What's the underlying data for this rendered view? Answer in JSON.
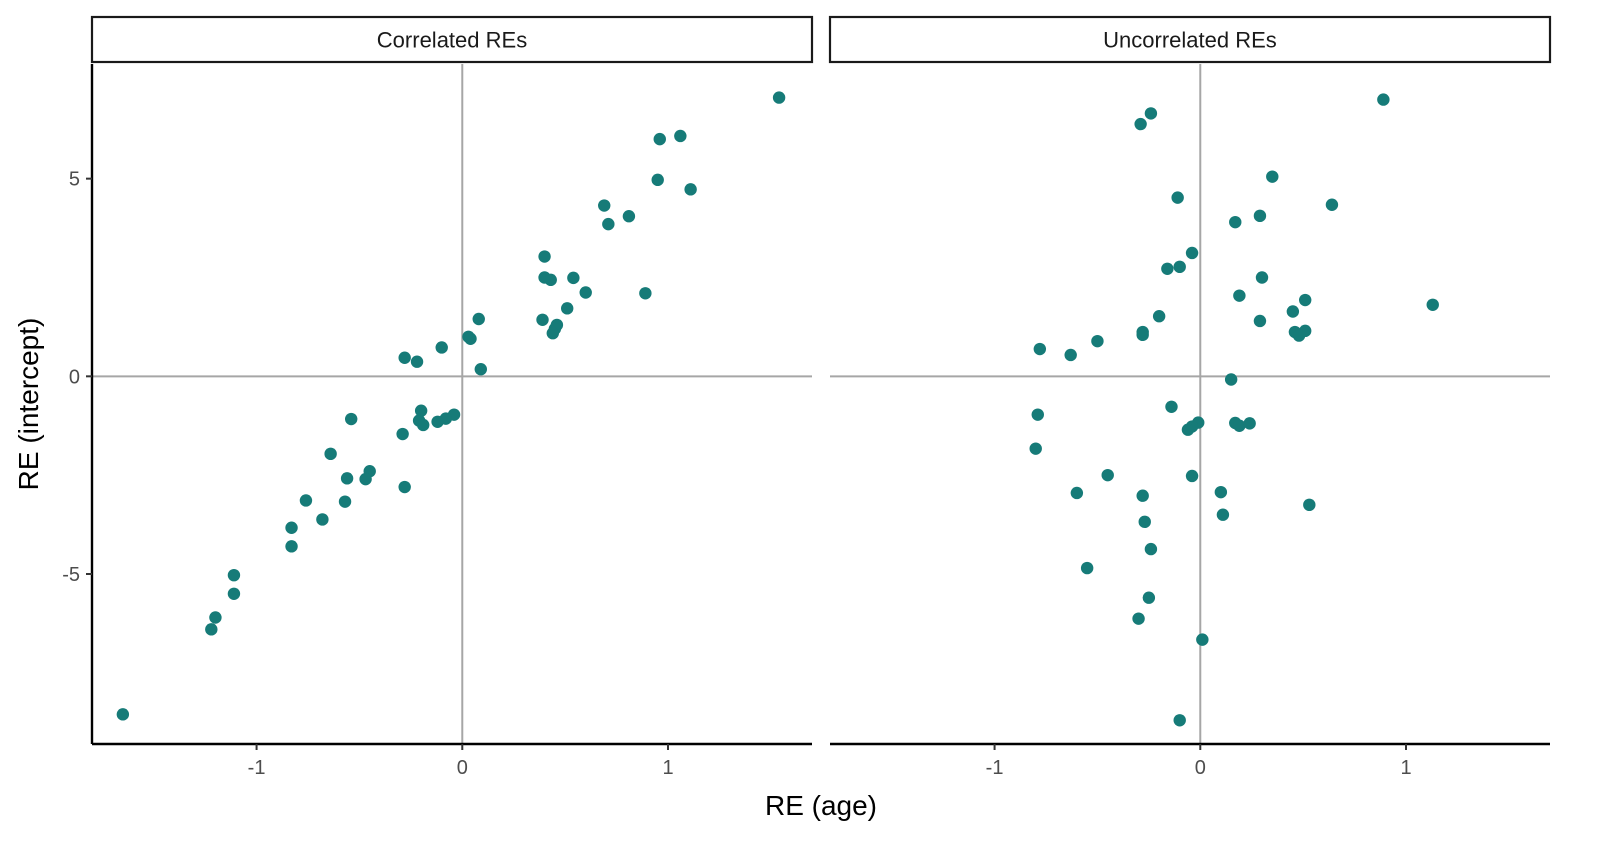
{
  "chart_data": {
    "type": "scatter",
    "xlabel": "RE (age)",
    "ylabel": "RE (intercept)",
    "xlim": [
      -1.8,
      1.7
    ],
    "ylim": [
      -9.3,
      7.9
    ],
    "x_ticks": [
      {
        "value": -1,
        "label": "-1"
      },
      {
        "value": 0,
        "label": "0"
      },
      {
        "value": 1,
        "label": "1"
      }
    ],
    "y_ticks": [
      {
        "value": 5,
        "label": "5"
      },
      {
        "value": 0,
        "label": "0"
      },
      {
        "value": -5,
        "label": "-5"
      }
    ],
    "reference_lines": {
      "x": 0,
      "y": 0,
      "color": "#a6a6a6"
    },
    "point_color": "#167b78",
    "grid": false,
    "legend": "none",
    "panels": [
      {
        "title": "Correlated REs",
        "points": [
          [
            1.54,
            7.05
          ],
          [
            1.06,
            6.08
          ],
          [
            0.96,
            6.0
          ],
          [
            0.95,
            4.97
          ],
          [
            1.11,
            4.73
          ],
          [
            0.69,
            4.32
          ],
          [
            0.81,
            4.05
          ],
          [
            0.71,
            3.85
          ],
          [
            0.4,
            3.03
          ],
          [
            0.4,
            2.5
          ],
          [
            0.43,
            2.44
          ],
          [
            0.54,
            2.49
          ],
          [
            0.6,
            2.12
          ],
          [
            0.89,
            2.1
          ],
          [
            0.51,
            1.72
          ],
          [
            0.39,
            1.43
          ],
          [
            0.46,
            1.3
          ],
          [
            0.45,
            1.2
          ],
          [
            0.44,
            1.09
          ],
          [
            0.08,
            1.45
          ],
          [
            0.03,
            1.0
          ],
          [
            0.04,
            0.95
          ],
          [
            0.09,
            0.18
          ],
          [
            -0.1,
            0.73
          ],
          [
            -0.28,
            0.47
          ],
          [
            -0.22,
            0.37
          ],
          [
            -0.04,
            -0.97
          ],
          [
            -0.08,
            -1.07
          ],
          [
            -0.12,
            -1.15
          ],
          [
            -0.2,
            -0.87
          ],
          [
            -0.21,
            -1.12
          ],
          [
            -0.19,
            -1.23
          ],
          [
            -0.29,
            -1.46
          ],
          [
            -0.54,
            -1.08
          ],
          [
            -0.64,
            -1.96
          ],
          [
            -0.56,
            -2.58
          ],
          [
            -0.45,
            -2.4
          ],
          [
            -0.47,
            -2.6
          ],
          [
            -0.28,
            -2.8
          ],
          [
            -0.57,
            -3.17
          ],
          [
            -0.76,
            -3.14
          ],
          [
            -0.68,
            -3.62
          ],
          [
            -0.83,
            -3.83
          ],
          [
            -0.83,
            -4.3
          ],
          [
            -1.11,
            -5.03
          ],
          [
            -1.11,
            -5.5
          ],
          [
            -1.2,
            -6.1
          ],
          [
            -1.22,
            -6.4
          ],
          [
            -1.65,
            -8.55
          ]
        ]
      },
      {
        "title": "Uncorrelated REs",
        "points": [
          [
            0.89,
            7.0
          ],
          [
            -0.24,
            6.65
          ],
          [
            -0.29,
            6.38
          ],
          [
            0.35,
            5.05
          ],
          [
            -0.11,
            4.52
          ],
          [
            0.64,
            4.34
          ],
          [
            0.29,
            4.06
          ],
          [
            0.17,
            3.9
          ],
          [
            -0.04,
            3.12
          ],
          [
            -0.16,
            2.72
          ],
          [
            -0.1,
            2.77
          ],
          [
            0.3,
            2.5
          ],
          [
            0.19,
            2.04
          ],
          [
            0.51,
            1.93
          ],
          [
            1.13,
            1.81
          ],
          [
            0.45,
            1.64
          ],
          [
            -0.2,
            1.52
          ],
          [
            0.29,
            1.4
          ],
          [
            0.51,
            1.15
          ],
          [
            0.46,
            1.12
          ],
          [
            0.48,
            1.03
          ],
          [
            -0.28,
            1.12
          ],
          [
            -0.28,
            1.05
          ],
          [
            -0.5,
            0.89
          ],
          [
            -0.78,
            0.69
          ],
          [
            -0.63,
            0.54
          ],
          [
            0.15,
            -0.08
          ],
          [
            -0.79,
            -0.97
          ],
          [
            -0.14,
            -0.77
          ],
          [
            -0.01,
            -1.17
          ],
          [
            -0.04,
            -1.27
          ],
          [
            -0.06,
            -1.35
          ],
          [
            0.17,
            -1.18
          ],
          [
            0.19,
            -1.25
          ],
          [
            0.24,
            -1.19
          ],
          [
            -0.8,
            -1.83
          ],
          [
            -0.45,
            -2.5
          ],
          [
            -0.04,
            -2.52
          ],
          [
            -0.6,
            -2.95
          ],
          [
            -0.28,
            -3.02
          ],
          [
            0.1,
            -2.93
          ],
          [
            0.11,
            -3.5
          ],
          [
            0.53,
            -3.25
          ],
          [
            -0.27,
            -3.68
          ],
          [
            -0.24,
            -4.37
          ],
          [
            -0.55,
            -4.85
          ],
          [
            -0.25,
            -5.6
          ],
          [
            -0.3,
            -6.13
          ],
          [
            0.01,
            -6.66
          ],
          [
            -0.1,
            -8.7
          ]
        ]
      }
    ]
  }
}
